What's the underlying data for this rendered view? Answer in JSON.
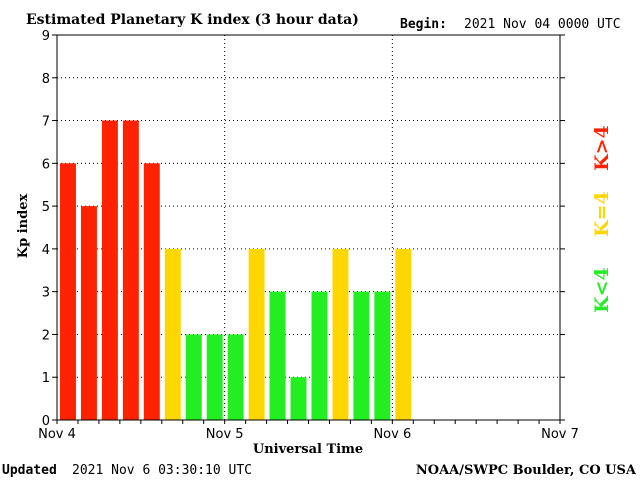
{
  "header": {
    "title": "Estimated Planetary K index (3 hour data)",
    "begin_label": "Begin:",
    "begin_value": "2021 Nov 04 0000 UTC"
  },
  "footer": {
    "updated_label": "Updated",
    "updated_value": "2021 Nov  6 03:30:10 UTC",
    "credit": "NOAA/SWPC Boulder, CO USA"
  },
  "legend": {
    "below": "K<4",
    "equal": "K=4",
    "above": "K>4"
  },
  "colors": {
    "below": "#22ee22",
    "equal": "#ffd700",
    "above": "#ff2200",
    "grid": "#000000"
  },
  "chart_data": {
    "type": "bar",
    "title": "Estimated Planetary K index (3 hour data)",
    "xlabel": "Universal Time",
    "ylabel": "Kp index",
    "ylim": [
      0,
      9
    ],
    "y_ticks": [
      "0",
      "1",
      "2",
      "3",
      "4",
      "5",
      "6",
      "7",
      "8",
      "9"
    ],
    "x_ticks": [
      "Nov 4",
      "Nov 5",
      "Nov 6",
      "Nov 7"
    ],
    "grid": true,
    "bars_per_day": 8,
    "values": [
      6,
      5,
      7,
      7,
      6,
      4,
      2,
      2,
      2,
      4,
      3,
      1,
      3,
      4,
      3,
      3,
      4
    ]
  }
}
